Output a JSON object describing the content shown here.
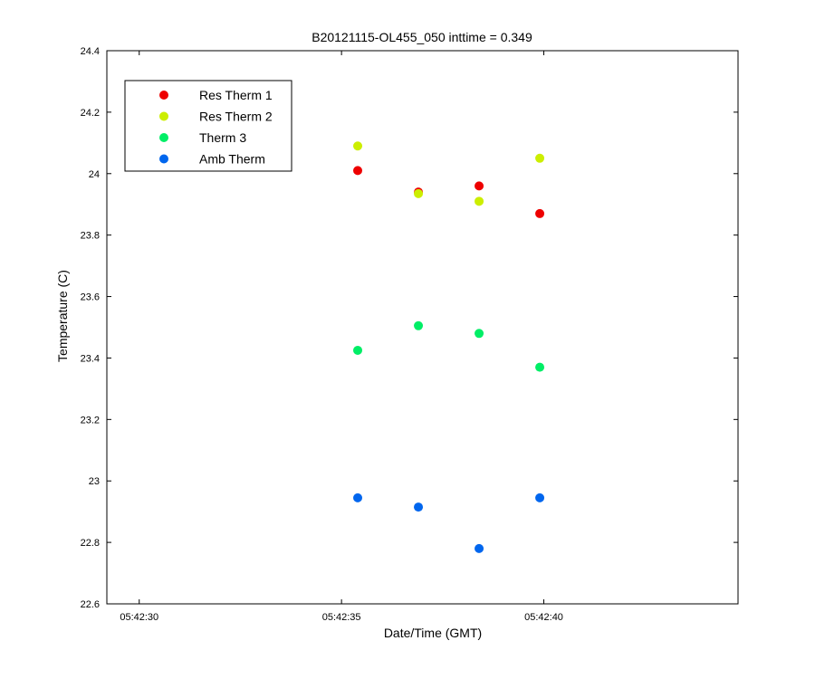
{
  "chart_data": {
    "type": "scatter",
    "title": "B20121115-OL455_050 inttime = 0.349",
    "xlabel": "Date/Time (GMT)",
    "ylabel": "Temperature (C)",
    "xlim": [
      "05:42:29.2",
      "05:42:44.8"
    ],
    "ylim": [
      22.6,
      24.4
    ],
    "x_ticks": [
      "05:42:30",
      "05:42:35",
      "05:42:40"
    ],
    "y_ticks": [
      22.6,
      22.8,
      23,
      23.2,
      23.4,
      23.6,
      23.8,
      24,
      24.2,
      24.4
    ],
    "y_tick_labels": [
      "22.6",
      "22.8",
      "23",
      "23.2",
      "23.4",
      "23.6",
      "23.8",
      "24",
      "24.2",
      "24.4"
    ],
    "x": [
      "05:42:35.4",
      "05:42:36.9",
      "05:42:38.4",
      "05:42:39.9"
    ],
    "series": [
      {
        "name": "Res Therm 1",
        "color": "#ee0000",
        "values": [
          24.01,
          23.94,
          23.96,
          23.87
        ]
      },
      {
        "name": "Res Therm 2",
        "color": "#ccee00",
        "values": [
          24.09,
          23.935,
          23.91,
          24.05
        ]
      },
      {
        "name": "Therm 3",
        "color": "#00ee66",
        "values": [
          23.425,
          23.505,
          23.48,
          23.37
        ]
      },
      {
        "name": "Amb Therm",
        "color": "#0066ee",
        "values": [
          22.945,
          22.915,
          22.78,
          22.945
        ]
      }
    ],
    "grid": false,
    "legend_position": "top-left"
  }
}
